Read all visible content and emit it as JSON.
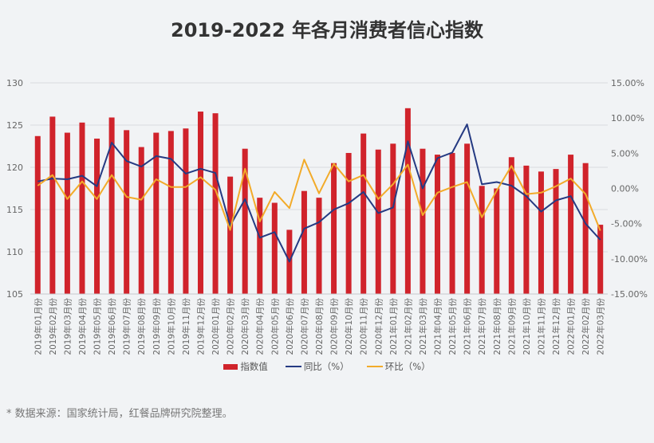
{
  "title": "2019-2022 年各月消费者信心指数",
  "legend": {
    "bar": "指数值",
    "yoy": "同比（%）",
    "mom": "环比（%）"
  },
  "source_note": "* 数据来源：国家统计局，红餐品牌研究院整理。",
  "colors": {
    "bar": "#d0232b",
    "yoy": "#253a82",
    "mom": "#f2ab2a",
    "grid": "#d9dbdf",
    "background": "#f1f3f5"
  },
  "chart_data": {
    "type": "bar",
    "title": "2019-2022 年各月消费者信心指数",
    "xlabel": "",
    "ylabel": "",
    "ylim": [
      105,
      130
    ],
    "y_ticks": [
      105,
      110,
      115,
      120,
      125,
      130
    ],
    "y2lim": [
      -15,
      15
    ],
    "y2_ticks": [
      "-15.00%",
      "-10.00%",
      "-5.00%",
      "0.00%",
      "5.00%",
      "10.00%",
      "15.00%"
    ],
    "grid": true,
    "legend_position": "bottom",
    "categories": [
      "2019年01月份",
      "2019年02月份",
      "2019年03月份",
      "2019年04月份",
      "2019年05月份",
      "2019年06月份",
      "2019年07月份",
      "2019年08月份",
      "2019年09月份",
      "2019年10月份",
      "2019年11月份",
      "2019年12月份",
      "2020年01月份",
      "2020年02月份",
      "2020年03月份",
      "2020年04月份",
      "2020年05月份",
      "2020年06月份",
      "2020年07月份",
      "2020年08月份",
      "2020年09月份",
      "2020年10月份",
      "2020年11月份",
      "2020年12月份",
      "2021年01月份",
      "2021年02月份",
      "2021年03月份",
      "2021年04月份",
      "2021年05月份",
      "2021年06月份",
      "2021年07月份",
      "2021年08月份",
      "2021年09月份",
      "2021年10月份",
      "2021年11月份",
      "2021年12月份",
      "2022年01月份",
      "2022年02月份",
      "2022年03月份"
    ],
    "series": [
      {
        "name": "指数值",
        "type": "bar",
        "axis": "left",
        "values": [
          123.7,
          126.0,
          124.1,
          125.3,
          123.4,
          125.9,
          124.4,
          122.4,
          124.1,
          124.3,
          124.6,
          126.6,
          126.4,
          118.9,
          122.2,
          116.4,
          115.8,
          112.6,
          117.2,
          116.4,
          120.5,
          121.7,
          124.0,
          122.1,
          122.8,
          127.0,
          122.2,
          121.5,
          121.7,
          122.8,
          117.8,
          117.5,
          121.2,
          120.2,
          119.5,
          119.8,
          121.5,
          120.5,
          113.2
        ]
      },
      {
        "name": "同比（%）",
        "type": "line",
        "axis": "right",
        "values": [
          1.0,
          1.4,
          1.3,
          1.8,
          0.3,
          6.5,
          3.9,
          3.1,
          4.6,
          4.2,
          2.1,
          2.8,
          2.2,
          -5.3,
          -1.5,
          -7.0,
          -6.2,
          -10.4,
          -5.7,
          -4.8,
          -3.0,
          -2.1,
          -0.5,
          -3.5,
          -2.7,
          6.7,
          0.0,
          4.3,
          5.1,
          9.1,
          0.6,
          0.9,
          0.4,
          -1.1,
          -3.3,
          -1.7,
          -1.1,
          -5.0,
          -7.3
        ]
      },
      {
        "name": "环比（%）",
        "type": "line",
        "axis": "right",
        "values": [
          0.4,
          1.9,
          -1.5,
          1.0,
          -1.5,
          1.9,
          -1.2,
          -1.6,
          1.3,
          0.2,
          0.2,
          1.6,
          -0.2,
          -5.9,
          2.8,
          -4.7,
          -0.5,
          -2.8,
          4.1,
          -0.7,
          3.5,
          1.0,
          1.9,
          -1.5,
          0.6,
          3.4,
          -3.8,
          -0.6,
          0.2,
          0.9,
          -4.1,
          -0.3,
          3.2,
          -0.8,
          -0.6,
          0.3,
          1.4,
          -0.8,
          -6.0
        ]
      }
    ]
  }
}
